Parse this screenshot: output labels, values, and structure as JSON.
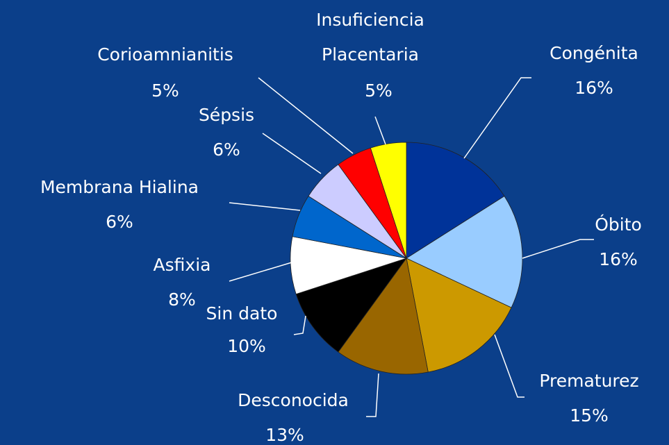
{
  "chart_data": {
    "type": "pie",
    "categories": [
      "Congénita",
      "Óbito",
      "Prematurez",
      "Desconocida",
      "Sin dato",
      "Asfixia",
      "Membrana Hialina",
      "Sépsis",
      "Corioamnianitis",
      "Insuficiencia Placentaria"
    ],
    "values": [
      16,
      16,
      15,
      13,
      10,
      8,
      6,
      6,
      5,
      5
    ],
    "value_labels": [
      "16%",
      "16%",
      "15%",
      "13%",
      "10%",
      "8%",
      "6%",
      "6%",
      "5%",
      "5%"
    ],
    "colors": [
      "#003399",
      "#99ccff",
      "#cc9900",
      "#996600",
      "#000000",
      "#ffffff",
      "#0066cc",
      "#ccccff",
      "#ff0000",
      "#ffff00"
    ]
  }
}
